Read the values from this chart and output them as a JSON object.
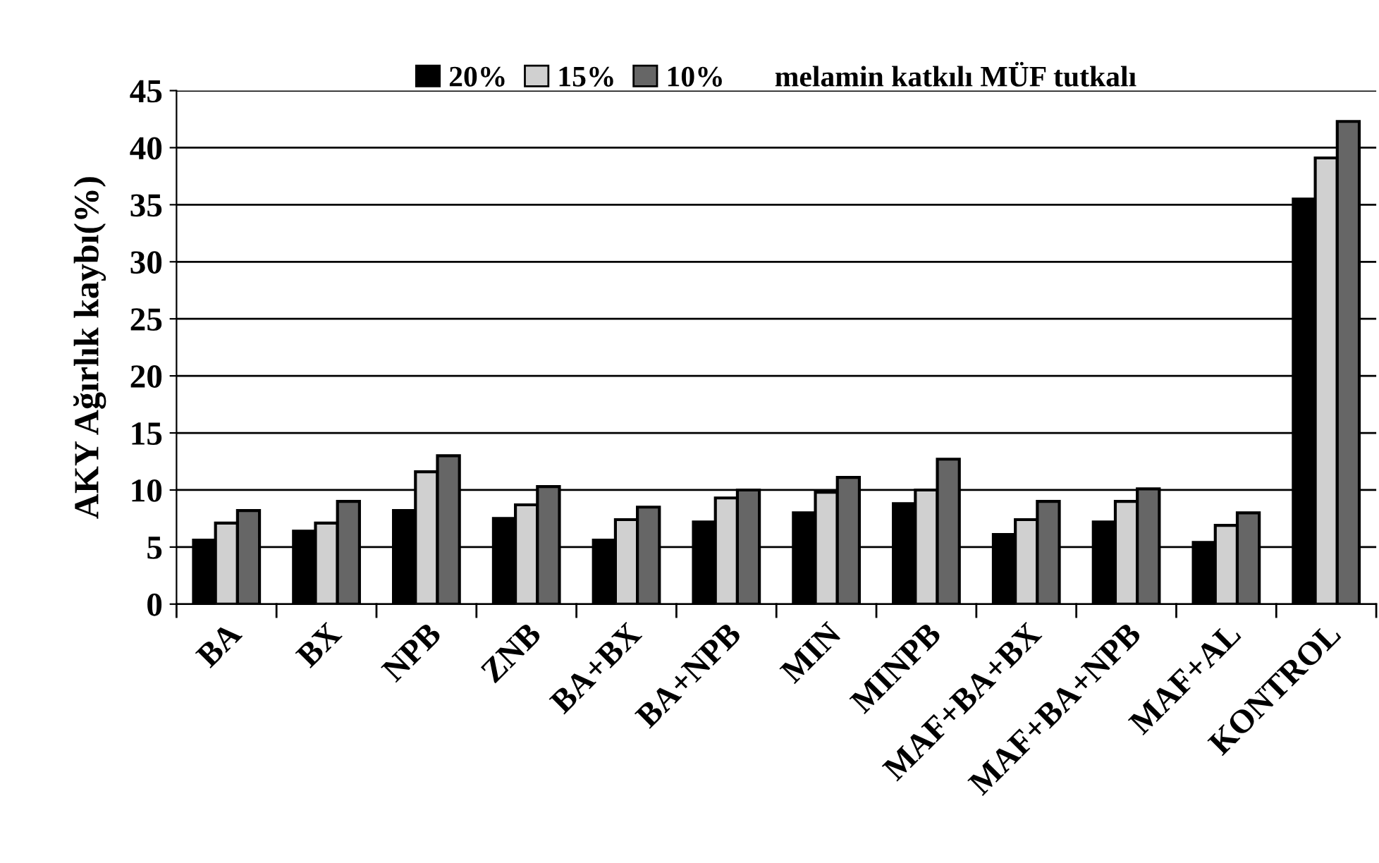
{
  "chart_data": {
    "type": "bar",
    "ylabel": "AKY Ağırlık kaybı(%)",
    "legend_title": "melamin katkılı MÜF tutkalı",
    "categories": [
      "BA",
      "BX",
      "NPB",
      "ZNB",
      "BA+BX",
      "BA+NPB",
      "MIN",
      "MINPB",
      "MAF+BA+BX",
      "MAF+BA+NPB",
      "MAF+AL",
      "KONTROL"
    ],
    "series": [
      {
        "name": "20%",
        "color": "#000000",
        "values": [
          5.6,
          6.4,
          8.2,
          7.5,
          5.6,
          7.2,
          8.0,
          8.8,
          6.1,
          7.2,
          5.4,
          35.5
        ]
      },
      {
        "name": "15%",
        "color": "#d0d0d0",
        "values": [
          7.1,
          7.1,
          11.6,
          8.7,
          7.4,
          9.3,
          9.8,
          10.0,
          7.4,
          9.0,
          6.9,
          39.1
        ]
      },
      {
        "name": "10%",
        "color": "#666666",
        "values": [
          8.2,
          9.0,
          13.0,
          10.3,
          8.5,
          10.0,
          11.1,
          12.7,
          9.0,
          10.1,
          8.0,
          42.3
        ]
      }
    ],
    "ylim": [
      0,
      45
    ],
    "yticks": [
      0,
      5,
      10,
      15,
      20,
      25,
      30,
      35,
      40,
      45
    ],
    "grid": "y",
    "legend": "top"
  }
}
